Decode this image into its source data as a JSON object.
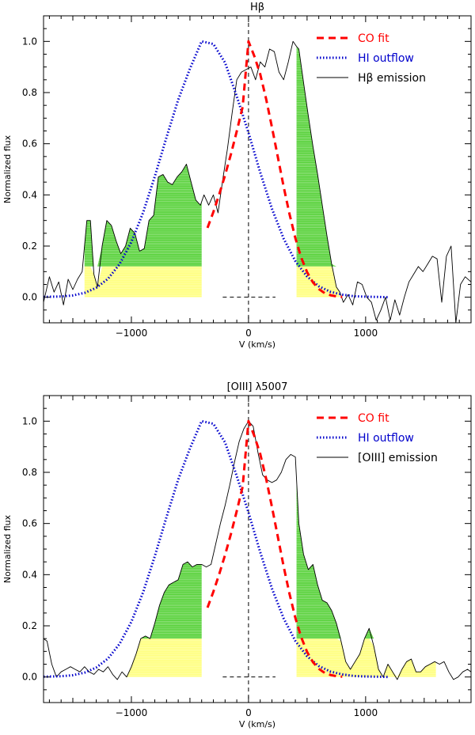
{
  "chart_data": [
    {
      "type": "line",
      "title": "Hβ",
      "xlabel": "V (km/s)",
      "ylabel": "Normalized flux",
      "xlim": [
        -1750,
        1900
      ],
      "ylim": [
        -0.1,
        1.1
      ],
      "xticks": [
        -1000,
        0,
        1000
      ],
      "yticks": [
        0.0,
        0.2,
        0.4,
        0.6,
        0.8,
        1.0
      ],
      "xtick_labels": [
        "−1000",
        "0",
        "1000"
      ],
      "ytick_labels": [
        "0.0",
        "0.2",
        "0.4",
        "0.6",
        "0.8",
        "1.0"
      ],
      "legend": {
        "position": "top-right",
        "entries": [
          "CO fit",
          "HI outflow",
          "Hβ emission"
        ]
      },
      "colors": {
        "co": "#ff0000",
        "hi": "#0000cc",
        "emission": "#000000",
        "green": "#44cc22",
        "yellow": "#ffff66"
      },
      "shaded_regions": [
        {
          "from": -1400,
          "to": -400,
          "level": 0.12
        },
        {
          "from": 410,
          "to": 780,
          "level": 0.12
        }
      ],
      "reference_lines": {
        "vertical_x": 0,
        "zero_segment": [
          -220,
          230
        ]
      },
      "series": [
        {
          "name": "CO fit",
          "style": "dashed",
          "x": [
            -350,
            -300,
            -250,
            -200,
            -150,
            -100,
            -50,
            0,
            50,
            100,
            150,
            200,
            250,
            300,
            350,
            400,
            450,
            500,
            550,
            600,
            650,
            700,
            750,
            800
          ],
          "y": [
            0.271,
            0.333,
            0.402,
            0.477,
            0.559,
            0.649,
            0.744,
            1.0,
            0.942,
            0.872,
            0.776,
            0.665,
            0.549,
            0.432,
            0.325,
            0.231,
            0.155,
            0.098,
            0.058,
            0.032,
            0.016,
            0.008,
            0.003,
            0.001
          ]
        },
        {
          "name": "HI outflow",
          "style": "dotted",
          "x": [
            -1750,
            -1600,
            -1500,
            -1400,
            -1300,
            -1200,
            -1100,
            -1000,
            -900,
            -800,
            -700,
            -600,
            -500,
            -400,
            -300,
            -200,
            -100,
            0,
            100,
            200,
            300,
            400,
            500,
            600,
            700,
            800,
            900,
            1000,
            1100,
            1200
          ],
          "y": [
            0.001,
            0.003,
            0.007,
            0.017,
            0.037,
            0.072,
            0.13,
            0.216,
            0.331,
            0.472,
            0.625,
            0.772,
            0.893,
            1.0,
            0.99,
            0.917,
            0.785,
            0.643,
            0.488,
            0.346,
            0.229,
            0.141,
            0.081,
            0.043,
            0.021,
            0.01,
            0.004,
            0.002,
            0.001,
            0.0
          ]
        },
        {
          "name": "Hβ emission",
          "style": "solid",
          "x": [
            -1750,
            -1700,
            -1660,
            -1620,
            -1580,
            -1540,
            -1500,
            -1460,
            -1420,
            -1380,
            -1350,
            -1320,
            -1290,
            -1250,
            -1210,
            -1170,
            -1130,
            -1090,
            -1050,
            -1010,
            -970,
            -930,
            -890,
            -850,
            -810,
            -770,
            -730,
            -690,
            -650,
            -610,
            -570,
            -530,
            -490,
            -450,
            -410,
            -380,
            -340,
            -300,
            -260,
            -220,
            -180,
            -140,
            -100,
            -60,
            -20,
            20,
            60,
            100,
            140,
            180,
            220,
            260,
            300,
            340,
            380,
            410,
            430,
            470,
            510,
            550,
            590,
            630,
            670,
            710,
            750,
            780,
            810,
            850,
            890,
            930,
            970,
            1010,
            1050,
            1090,
            1130,
            1170,
            1210,
            1250,
            1290,
            1330,
            1370,
            1410,
            1450,
            1490,
            1530,
            1570,
            1610,
            1650,
            1690,
            1730,
            1770,
            1810,
            1850,
            1900
          ],
          "y": [
            -0.02,
            0.08,
            0.02,
            0.06,
            -0.03,
            0.07,
            0.03,
            0.07,
            0.1,
            0.3,
            0.3,
            0.09,
            0.04,
            0.2,
            0.3,
            0.28,
            0.22,
            0.17,
            0.2,
            0.27,
            0.25,
            0.18,
            0.19,
            0.3,
            0.32,
            0.47,
            0.48,
            0.45,
            0.44,
            0.47,
            0.49,
            0.52,
            0.45,
            0.38,
            0.36,
            0.4,
            0.36,
            0.4,
            0.33,
            0.46,
            0.58,
            0.72,
            0.85,
            0.88,
            0.89,
            0.9,
            0.85,
            0.92,
            0.9,
            0.97,
            0.96,
            0.88,
            0.85,
            0.92,
            1.0,
            0.98,
            0.97,
            0.84,
            0.71,
            0.59,
            0.48,
            0.36,
            0.24,
            0.13,
            0.04,
            0.02,
            -0.02,
            0.01,
            -0.03,
            0.06,
            0.05,
            0.0,
            -0.02,
            -0.09,
            -0.05,
            0.0,
            -0.09,
            -0.01,
            -0.07,
            0.0,
            0.06,
            0.09,
            0.12,
            0.1,
            0.13,
            0.16,
            0.15,
            -0.02,
            0.16,
            0.2,
            -0.1,
            0.05,
            0.08,
            0.06
          ]
        }
      ]
    },
    {
      "type": "line",
      "title": "[OIII] λ5007",
      "xlabel": "V (km/s)",
      "ylabel": "Normalized flux",
      "xlim": [
        -1750,
        1900
      ],
      "ylim": [
        -0.1,
        1.1
      ],
      "xticks": [
        -1000,
        0,
        1000
      ],
      "yticks": [
        0.0,
        0.2,
        0.4,
        0.6,
        0.8,
        1.0
      ],
      "xtick_labels": [
        "−1000",
        "0",
        "1000"
      ],
      "ytick_labels": [
        "0.0",
        "0.2",
        "0.4",
        "0.6",
        "0.8",
        "1.0"
      ],
      "legend": {
        "position": "top-right",
        "entries": [
          "CO fit",
          "HI outflow",
          "[OIII] emission"
        ]
      },
      "colors": {
        "co": "#ff0000",
        "hi": "#0000cc",
        "emission": "#000000",
        "green": "#44cc22",
        "yellow": "#ffff66"
      },
      "shaded_regions": [
        {
          "from": -1050,
          "to": -400,
          "level": 0.15
        },
        {
          "from": 410,
          "to": 1600,
          "level": 0.15
        }
      ],
      "reference_lines": {
        "vertical_x": 0,
        "zero_segment": [
          -220,
          230
        ]
      },
      "series": [
        {
          "name": "CO fit",
          "style": "dashed",
          "x": [
            -350,
            -300,
            -250,
            -200,
            -150,
            -100,
            -50,
            0,
            50,
            100,
            150,
            200,
            250,
            300,
            350,
            400,
            450,
            500,
            550,
            600,
            650,
            700,
            750,
            800
          ],
          "y": [
            0.271,
            0.333,
            0.402,
            0.477,
            0.559,
            0.649,
            0.744,
            1.0,
            0.942,
            0.872,
            0.776,
            0.665,
            0.549,
            0.432,
            0.325,
            0.231,
            0.155,
            0.098,
            0.058,
            0.032,
            0.016,
            0.008,
            0.003,
            0.001
          ]
        },
        {
          "name": "HI outflow",
          "style": "dotted",
          "x": [
            -1750,
            -1600,
            -1500,
            -1400,
            -1300,
            -1200,
            -1100,
            -1000,
            -900,
            -800,
            -700,
            -600,
            -500,
            -400,
            -300,
            -200,
            -100,
            0,
            100,
            200,
            300,
            400,
            500,
            600,
            700,
            800,
            900,
            1000,
            1100,
            1200
          ],
          "y": [
            0.001,
            0.003,
            0.007,
            0.017,
            0.037,
            0.072,
            0.13,
            0.216,
            0.331,
            0.472,
            0.625,
            0.772,
            0.893,
            1.0,
            0.99,
            0.917,
            0.785,
            0.643,
            0.488,
            0.346,
            0.229,
            0.141,
            0.081,
            0.043,
            0.021,
            0.01,
            0.004,
            0.002,
            0.001,
            0.0
          ]
        },
        {
          "name": "[OIII] emission",
          "style": "solid",
          "x": [
            -1750,
            -1720,
            -1680,
            -1640,
            -1600,
            -1560,
            -1520,
            -1480,
            -1440,
            -1400,
            -1360,
            -1320,
            -1280,
            -1240,
            -1200,
            -1160,
            -1120,
            -1080,
            -1040,
            -1000,
            -960,
            -920,
            -880,
            -840,
            -800,
            -760,
            -720,
            -680,
            -640,
            -600,
            -560,
            -520,
            -480,
            -440,
            -400,
            -360,
            -320,
            -280,
            -240,
            -200,
            -160,
            -120,
            -80,
            -40,
            0,
            40,
            80,
            120,
            160,
            200,
            240,
            280,
            320,
            360,
            400,
            430,
            470,
            510,
            550,
            590,
            630,
            670,
            710,
            750,
            790,
            830,
            870,
            910,
            950,
            990,
            1030,
            1070,
            1110,
            1150,
            1190,
            1230,
            1270,
            1310,
            1350,
            1390,
            1430,
            1470,
            1510,
            1550,
            1590,
            1630,
            1670,
            1710,
            1750,
            1790,
            1830,
            1870,
            1900
          ],
          "y": [
            0.15,
            0.14,
            0.05,
            0.0,
            0.02,
            0.03,
            0.04,
            0.03,
            0.02,
            0.04,
            0.02,
            0.01,
            0.03,
            0.02,
            0.04,
            0.01,
            -0.01,
            0.02,
            0.0,
            0.04,
            0.09,
            0.15,
            0.16,
            0.15,
            0.21,
            0.28,
            0.33,
            0.36,
            0.37,
            0.38,
            0.44,
            0.45,
            0.43,
            0.44,
            0.44,
            0.43,
            0.44,
            0.52,
            0.6,
            0.67,
            0.75,
            0.84,
            0.92,
            0.97,
            1.0,
            0.98,
            0.88,
            0.79,
            0.77,
            0.76,
            0.77,
            0.8,
            0.85,
            0.87,
            0.86,
            0.6,
            0.48,
            0.42,
            0.44,
            0.36,
            0.3,
            0.29,
            0.26,
            0.21,
            0.14,
            0.06,
            0.03,
            0.06,
            0.09,
            0.15,
            0.19,
            0.12,
            0.03,
            0.0,
            0.05,
            0.02,
            -0.01,
            0.03,
            0.06,
            0.07,
            0.02,
            0.02,
            0.04,
            0.05,
            0.06,
            0.05,
            0.06,
            0.02,
            -0.01,
            0.0,
            0.02,
            0.03,
            0.02
          ]
        }
      ]
    }
  ]
}
